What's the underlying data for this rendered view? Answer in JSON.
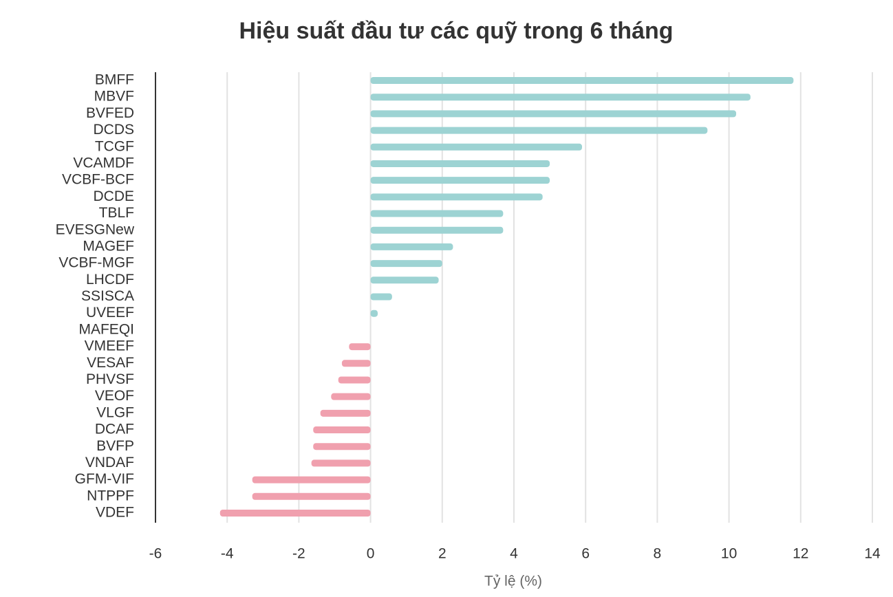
{
  "chart_data": {
    "type": "bar",
    "orientation": "horizontal",
    "title": "Hiệu suất đầu tư các quỹ trong 6 tháng",
    "x_label": "Tỷ lệ (%)",
    "categories": [
      "BMFF",
      "MBVF",
      "BVFED",
      "DCDS",
      "TCGF",
      "VCAMDF",
      "VCBF-BCF",
      "DCDE",
      "TBLF",
      "EVESGNew",
      "MAGEF",
      "VCBF-MGF",
      "LHCDF",
      "SSISCA",
      "UVEEF",
      "MAFEQI",
      "VMEEF",
      "VESAF",
      "PHVSF",
      "VEOF",
      "VLGF",
      "DCAF",
      "BVFP",
      "VNDAF",
      "GFM-VIF",
      "NTPPF",
      "VDEF"
    ],
    "values": [
      11.8,
      10.6,
      10.2,
      9.4,
      5.9,
      5.0,
      5.0,
      4.8,
      3.7,
      3.7,
      2.3,
      2.0,
      1.9,
      0.6,
      0.2,
      0,
      -0.6,
      -0.8,
      -0.9,
      -1.1,
      -1.4,
      -1.6,
      -1.6,
      -1.65,
      -3.3,
      -3.3,
      -4.2
    ],
    "positive_color": "#9dd3d3",
    "negative_color": "#f0a0ae",
    "xlim": [
      -6,
      14
    ],
    "xticks": [
      -6,
      -4,
      -2,
      0,
      2,
      4,
      6,
      8,
      10,
      12,
      14
    ],
    "grid": true
  }
}
